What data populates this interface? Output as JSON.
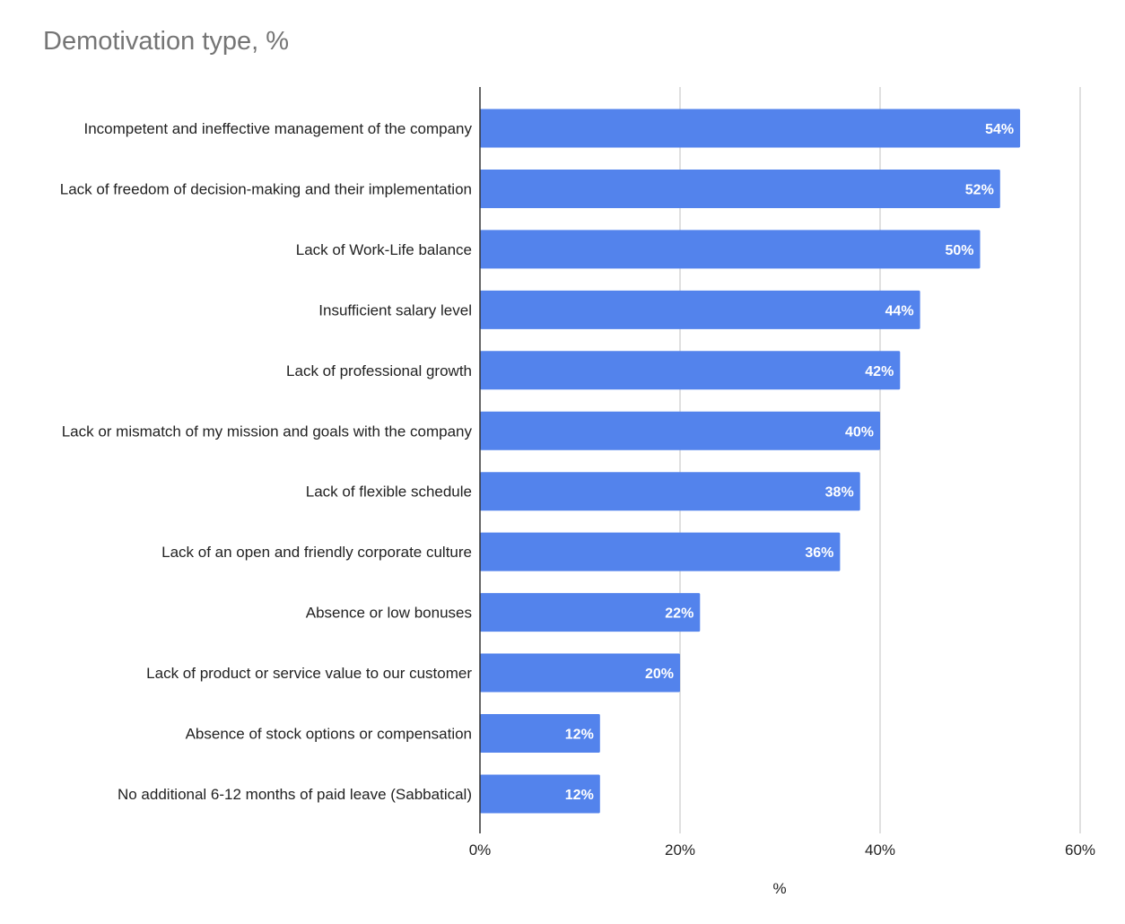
{
  "chart_data": {
    "type": "bar",
    "orientation": "horizontal",
    "title": "Demotivation type, %",
    "xlabel": "%",
    "ylabel": "",
    "xlim": [
      0,
      60
    ],
    "x_ticks": [
      "0%",
      "20%",
      "40%",
      "60%"
    ],
    "grid": true,
    "bar_color": "#5383ec",
    "categories": [
      "Incompetent and ineffective management of the company",
      "Lack of freedom of decision-making and their implementation",
      "Lack of Work-Life balance",
      "Insufficient salary level",
      "Lack of professional growth",
      "Lack or mismatch of my mission and goals with the company",
      "Lack of flexible schedule",
      "Lack of an open and friendly corporate culture",
      "Absence or low bonuses",
      "Lack of product or service value to our customer",
      "Absence of stock options or compensation",
      "No additional 6-12 months of paid leave (Sabbatical)"
    ],
    "values": [
      54,
      52,
      50,
      44,
      42,
      40,
      38,
      36,
      22,
      20,
      12,
      12
    ],
    "data_labels": [
      "54%",
      "52%",
      "50%",
      "44%",
      "42%",
      "40%",
      "38%",
      "36%",
      "22%",
      "20%",
      "12%",
      "12%"
    ]
  }
}
